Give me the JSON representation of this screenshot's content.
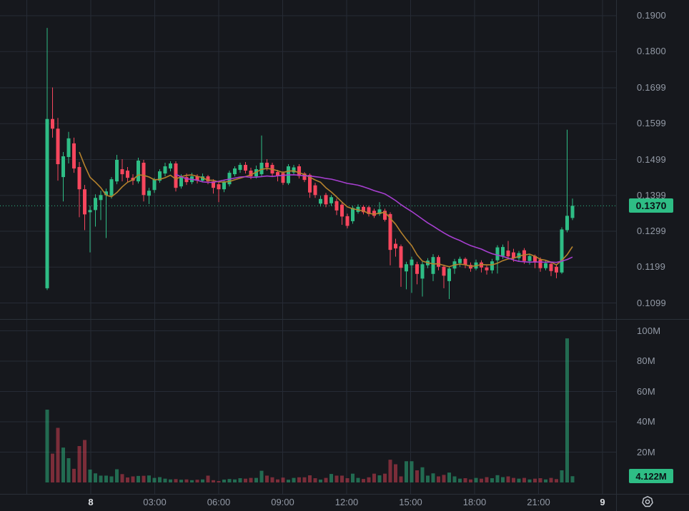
{
  "ui": {
    "last_price_badge": "0.1370",
    "last_volume_badge": "4.122M",
    "gear_icon": "price-scale-settings"
  },
  "chart_data": {
    "type": "candlestick_with_volume",
    "title": "",
    "interval_minutes": 15,
    "last_price": 0.137,
    "last_volume_label": "4.122M",
    "price_axis_ticks": [
      {
        "label": "0.1900",
        "value": 0.19
      },
      {
        "label": "0.1800",
        "value": 0.18
      },
      {
        "label": "0.1699",
        "value": 0.1699
      },
      {
        "label": "0.1599",
        "value": 0.1599
      },
      {
        "label": "0.1499",
        "value": 0.1499
      },
      {
        "label": "0.1399",
        "value": 0.1399
      },
      {
        "label": "0.1299",
        "value": 0.1299
      },
      {
        "label": "0.1199",
        "value": 0.1199
      },
      {
        "label": "0.1099",
        "value": 0.1099
      }
    ],
    "volume_axis_ticks": [
      {
        "label": "100M",
        "value": 100
      },
      {
        "label": "80M",
        "value": 80
      },
      {
        "label": "60M",
        "value": 60
      },
      {
        "label": "40M",
        "value": 40
      },
      {
        "label": "20M",
        "value": 20
      }
    ],
    "time_axis_ticks": [
      {
        "label": "8",
        "bold": true
      },
      {
        "label": "03:00",
        "bold": false
      },
      {
        "label": "06:00",
        "bold": false
      },
      {
        "label": "09:00",
        "bold": false
      },
      {
        "label": "12:00",
        "bold": false
      },
      {
        "label": "15:00",
        "bold": false
      },
      {
        "label": "18:00",
        "bold": false
      },
      {
        "label": "21:00",
        "bold": false
      },
      {
        "label": "9",
        "bold": true
      }
    ],
    "moving_averages": [
      {
        "period": 7,
        "color": "#B5822D"
      },
      {
        "period": 25,
        "color": "#A73FD0"
      }
    ],
    "colors": {
      "bg": "#16181D",
      "grid": "#262B35",
      "border": "#2A3038",
      "text": "#939AA6",
      "text_bold": "#DDE0E4",
      "up": "#2EBD85",
      "down": "#F6465D",
      "vol_up": "rgba(46,189,133,0.5)",
      "vol_down": "rgba(246,70,93,0.45)",
      "badge_bg": "#2EBD85",
      "badge_text": "#0C1116",
      "last_price_line": "#2EBD85"
    },
    "candles": [
      [
        0.114,
        0.1866,
        0.1135,
        0.1612,
        48
      ],
      [
        0.1612,
        0.17,
        0.156,
        0.1585,
        19
      ],
      [
        0.1585,
        0.1615,
        0.144,
        0.1486,
        36
      ],
      [
        0.145,
        0.152,
        0.1382,
        0.1508,
        23
      ],
      [
        0.1506,
        0.1576,
        0.1488,
        0.1558,
        16
      ],
      [
        0.1544,
        0.156,
        0.1462,
        0.1474,
        9
      ],
      [
        0.1478,
        0.1492,
        0.1338,
        0.1416,
        24
      ],
      [
        0.1416,
        0.1428,
        0.1302,
        0.1346,
        28
      ],
      [
        0.1352,
        0.137,
        0.124,
        0.1358,
        8.5
      ],
      [
        0.1358,
        0.1402,
        0.1312,
        0.1392,
        6
      ],
      [
        0.1386,
        0.1412,
        0.133,
        0.14,
        4.5
      ],
      [
        0.14,
        0.1418,
        0.128,
        0.141,
        4.5
      ],
      [
        0.1398,
        0.145,
        0.139,
        0.1444,
        4
      ],
      [
        0.1438,
        0.1512,
        0.143,
        0.1498,
        8.7
      ],
      [
        0.1472,
        0.15,
        0.1438,
        0.1458,
        5.5
      ],
      [
        0.1468,
        0.1478,
        0.1436,
        0.1448,
        3.3
      ],
      [
        0.1448,
        0.1458,
        0.1428,
        0.144,
        4
      ],
      [
        0.1438,
        0.1504,
        0.1432,
        0.1496,
        4.3
      ],
      [
        0.149,
        0.1498,
        0.1382,
        0.14,
        4.4
      ],
      [
        0.1398,
        0.142,
        0.1375,
        0.1412,
        4.6
      ],
      [
        0.1414,
        0.1448,
        0.1406,
        0.1444,
        3
      ],
      [
        0.144,
        0.1472,
        0.1434,
        0.1466,
        3.5
      ],
      [
        0.146,
        0.149,
        0.1452,
        0.148,
        2.5
      ],
      [
        0.1474,
        0.1494,
        0.1466,
        0.1488,
        2
      ],
      [
        0.1488,
        0.1494,
        0.141,
        0.142,
        2.2
      ],
      [
        0.1424,
        0.1458,
        0.1418,
        0.145,
        1.8
      ],
      [
        0.145,
        0.146,
        0.1428,
        0.1436,
        2
      ],
      [
        0.1436,
        0.1462,
        0.143,
        0.1452,
        1.5
      ],
      [
        0.1452,
        0.1458,
        0.1432,
        0.144,
        1.8
      ],
      [
        0.144,
        0.146,
        0.1436,
        0.1452,
        2
      ],
      [
        0.1452,
        0.1456,
        0.143,
        0.1438,
        4.5
      ],
      [
        0.1438,
        0.1444,
        0.1404,
        0.142,
        1.5
      ],
      [
        0.143,
        0.1436,
        0.138,
        0.1416,
        0.9
      ],
      [
        0.1416,
        0.1442,
        0.1408,
        0.1436,
        1.9
      ],
      [
        0.143,
        0.1468,
        0.1424,
        0.1462,
        2.3
      ],
      [
        0.1458,
        0.148,
        0.1452,
        0.1474,
        2
      ],
      [
        0.147,
        0.149,
        0.1462,
        0.1484,
        2.8
      ],
      [
        0.1484,
        0.1492,
        0.146,
        0.1468,
        2.5
      ],
      [
        0.1468,
        0.1476,
        0.1444,
        0.1452,
        3
      ],
      [
        0.1452,
        0.1482,
        0.1446,
        0.1472,
        3
      ],
      [
        0.1458,
        0.1566,
        0.1452,
        0.149,
        7.7
      ],
      [
        0.149,
        0.15,
        0.1468,
        0.1477,
        4.5
      ],
      [
        0.1484,
        0.149,
        0.1452,
        0.146,
        3.4
      ],
      [
        0.1464,
        0.147,
        0.1438,
        0.1454,
        2
      ],
      [
        0.1461,
        0.1466,
        0.1428,
        0.1434,
        3.2
      ],
      [
        0.1433,
        0.1486,
        0.1428,
        0.148,
        1.8
      ],
      [
        0.1463,
        0.1484,
        0.1456,
        0.1477,
        3
      ],
      [
        0.148,
        0.1486,
        0.1446,
        0.1453,
        3.4
      ],
      [
        0.146,
        0.1464,
        0.1436,
        0.1442,
        3.4
      ],
      [
        0.1456,
        0.146,
        0.1392,
        0.1407,
        4.7
      ],
      [
        0.1427,
        0.1434,
        0.1392,
        0.14,
        2.8
      ],
      [
        0.1376,
        0.1398,
        0.1368,
        0.1389,
        1.9
      ],
      [
        0.14,
        0.1406,
        0.1366,
        0.1374,
        3
      ],
      [
        0.1377,
        0.14,
        0.137,
        0.1394,
        5.6
      ],
      [
        0.1383,
        0.139,
        0.1344,
        0.1357,
        4.5
      ],
      [
        0.1373,
        0.1378,
        0.1317,
        0.134,
        4.5
      ],
      [
        0.1341,
        0.1348,
        0.1307,
        0.1314,
        2.8
      ],
      [
        0.1327,
        0.137,
        0.132,
        0.1364,
        5.8
      ],
      [
        0.1353,
        0.1374,
        0.1348,
        0.1367,
        3
      ],
      [
        0.1367,
        0.1372,
        0.1346,
        0.1352,
        2.3
      ],
      [
        0.1366,
        0.137,
        0.134,
        0.1347,
        3.4
      ],
      [
        0.1356,
        0.1362,
        0.1336,
        0.1342,
        5.8
      ],
      [
        0.1347,
        0.138,
        0.1342,
        0.136,
        4.7
      ],
      [
        0.1356,
        0.1362,
        0.1326,
        0.1331,
        5.8
      ],
      [
        0.1347,
        0.1352,
        0.1204,
        0.1247,
        15
      ],
      [
        0.1264,
        0.1278,
        0.1228,
        0.1251,
        12
      ],
      [
        0.1257,
        0.1262,
        0.1144,
        0.1197,
        4
      ],
      [
        0.1187,
        0.1214,
        0.1137,
        0.1207,
        14
      ],
      [
        0.1204,
        0.1228,
        0.1127,
        0.122,
        14
      ],
      [
        0.1207,
        0.1214,
        0.1151,
        0.118,
        8
      ],
      [
        0.1167,
        0.1214,
        0.1117,
        0.1207,
        10
      ],
      [
        0.1204,
        0.1224,
        0.1196,
        0.1217,
        4.5
      ],
      [
        0.118,
        0.1235,
        0.116,
        0.1227,
        6
      ],
      [
        0.1227,
        0.1232,
        0.119,
        0.12,
        4
      ],
      [
        0.12,
        0.1206,
        0.114,
        0.1175,
        5
      ],
      [
        0.116,
        0.12,
        0.111,
        0.1195,
        6.5
      ],
      [
        0.1195,
        0.1222,
        0.118,
        0.1215,
        4
      ],
      [
        0.121,
        0.1228,
        0.12,
        0.1222,
        2.5
      ],
      [
        0.1222,
        0.1226,
        0.1196,
        0.1205,
        2.8
      ],
      [
        0.1205,
        0.1212,
        0.1186,
        0.1195,
        2
      ],
      [
        0.1195,
        0.122,
        0.119,
        0.1212,
        3
      ],
      [
        0.1212,
        0.1218,
        0.1184,
        0.1198,
        2.5
      ],
      [
        0.1198,
        0.1204,
        0.1178,
        0.119,
        3.5
      ],
      [
        0.119,
        0.1222,
        0.1181,
        0.1215,
        2.8
      ],
      [
        0.1218,
        0.126,
        0.1181,
        0.1254,
        4.8
      ],
      [
        0.123,
        0.1262,
        0.1222,
        0.1255,
        3.5
      ],
      [
        0.1245,
        0.1272,
        0.1222,
        0.1229,
        4
      ],
      [
        0.124,
        0.125,
        0.1214,
        0.1224,
        3
      ],
      [
        0.1224,
        0.1244,
        0.1216,
        0.1238,
        2.5
      ],
      [
        0.1246,
        0.1252,
        0.1208,
        0.1216,
        3
      ],
      [
        0.1216,
        0.1236,
        0.1206,
        0.123,
        2
      ],
      [
        0.123,
        0.1234,
        0.1196,
        0.1212,
        2.5
      ],
      [
        0.122,
        0.1226,
        0.1186,
        0.1196,
        2.8
      ],
      [
        0.1196,
        0.1218,
        0.119,
        0.121,
        2
      ],
      [
        0.1208,
        0.1214,
        0.1174,
        0.1188,
        3
      ],
      [
        0.12,
        0.1206,
        0.1168,
        0.1184,
        2.2
      ],
      [
        0.1184,
        0.131,
        0.118,
        0.1304,
        8
      ],
      [
        0.1302,
        0.1582,
        0.1296,
        0.1342,
        95
      ],
      [
        0.1336,
        0.139,
        0.133,
        0.137,
        4.122
      ]
    ]
  }
}
